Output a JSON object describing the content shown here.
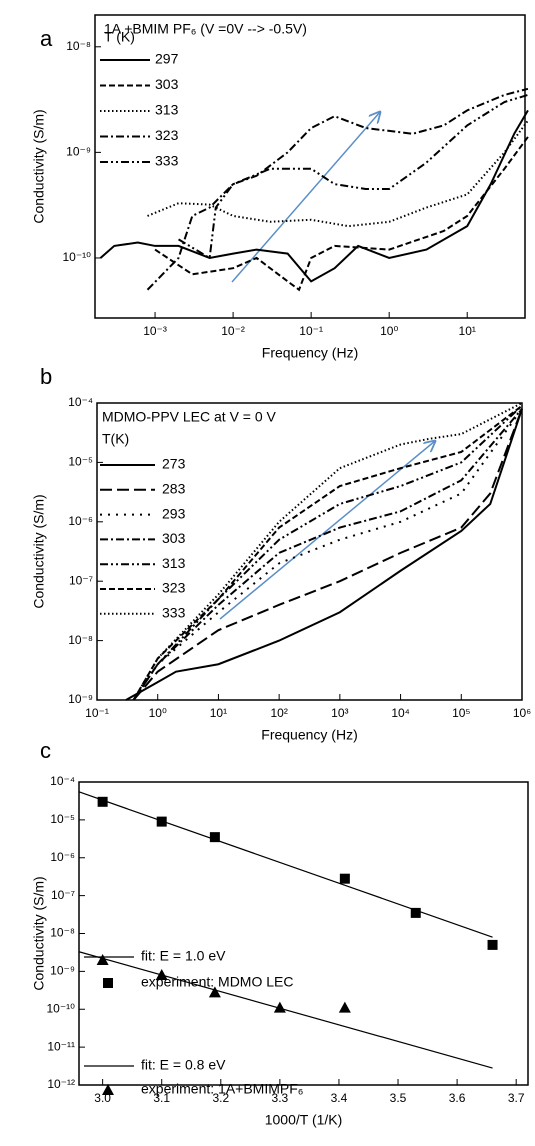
{
  "chart_data": [
    {
      "type": "line",
      "label": "a",
      "annotation": "1A +BMIM PF₆  (V =0V --> -0.5V)",
      "legend_title": "T (K)",
      "xlabel": "Frequency (Hz)",
      "ylabel": "Conductivity (S/m)",
      "xlog": true,
      "ylog": true,
      "xlim": [
        0.00017,
        55
      ],
      "ylim": [
        2.7e-11,
        2e-08
      ],
      "xticks": [
        {
          "value": 0.001,
          "label": "10⁻³"
        },
        {
          "value": 0.01,
          "label": "10⁻²"
        },
        {
          "value": 0.1,
          "label": "10⁻¹"
        },
        {
          "value": 1,
          "label": "10⁰"
        },
        {
          "value": 10,
          "label": "10¹"
        }
      ],
      "yticks": [
        {
          "value": 1e-10,
          "label": "10⁻¹⁰"
        },
        {
          "value": 1e-09,
          "label": "10⁻⁹"
        },
        {
          "value": 1e-08,
          "label": "10⁻⁸"
        }
      ],
      "series": [
        {
          "name": "297",
          "color": "#000",
          "style": "solid",
          "x": [
            0.0002,
            0.0003,
            0.0006,
            0.001,
            0.002,
            0.005,
            0.01,
            0.02,
            0.05,
            0.1,
            0.2,
            0.4,
            1,
            3,
            10,
            20,
            40,
            60
          ],
          "values": [
            1e-10,
            1.3e-10,
            1.4e-10,
            1.3e-10,
            1.3e-10,
            1e-10,
            1.1e-10,
            1.2e-10,
            1.1e-10,
            6e-11,
            8e-11,
            1.3e-10,
            1e-10,
            1.2e-10,
            2e-10,
            5e-10,
            1.5e-09,
            2.5e-09
          ]
        },
        {
          "name": "303",
          "color": "#000",
          "style": "dashed",
          "x": [
            0.001,
            0.003,
            0.01,
            0.02,
            0.05,
            0.07,
            0.1,
            0.2,
            1,
            5,
            10,
            30,
            60
          ],
          "values": [
            1.2e-10,
            7e-11,
            8e-11,
            1e-10,
            6e-11,
            5e-11,
            1e-10,
            1.3e-10,
            1.2e-10,
            1.8e-10,
            2.5e-10,
            7e-10,
            1.4e-09
          ]
        },
        {
          "name": "313",
          "color": "#000",
          "style": "dotted",
          "x": [
            0.0008,
            0.002,
            0.005,
            0.01,
            0.03,
            0.1,
            0.3,
            1,
            3,
            10,
            30,
            60
          ],
          "values": [
            2.5e-10,
            3.3e-10,
            3.2e-10,
            2.5e-10,
            2.2e-10,
            2.3e-10,
            2e-10,
            2.2e-10,
            3e-10,
            4e-10,
            1e-09,
            2e-09
          ]
        },
        {
          "name": "323",
          "color": "#000",
          "style": "dashdot",
          "x": [
            0.0008,
            0.002,
            0.003,
            0.005,
            0.01,
            0.02,
            0.05,
            0.1,
            0.2,
            0.5,
            2,
            5,
            10,
            30,
            60
          ],
          "values": [
            5e-11,
            1e-10,
            2.5e-10,
            3e-10,
            5e-10,
            6e-10,
            1e-09,
            1.7e-09,
            2.2e-09,
            1.7e-09,
            1.5e-09,
            1.8e-09,
            2.5e-09,
            3.5e-09,
            4e-09
          ]
        },
        {
          "name": "333",
          "color": "#000",
          "style": "dashdotdot",
          "x": [
            0.002,
            0.005,
            0.006,
            0.01,
            0.03,
            0.1,
            0.2,
            0.5,
            1,
            3,
            10,
            30,
            60
          ],
          "values": [
            1.5e-10,
            1e-10,
            3e-10,
            5e-10,
            7e-10,
            7e-10,
            5e-10,
            4.5e-10,
            4.5e-10,
            8e-10,
            1.8e-09,
            3e-09,
            3.5e-09
          ]
        }
      ]
    },
    {
      "type": "line",
      "label": "b",
      "annotation": "MDMO-PPV LEC at V = 0 V",
      "legend_title": "T(K)",
      "xlabel": "Frequency (Hz)",
      "ylabel": "Conductivity (S/m)",
      "xlog": true,
      "ylog": true,
      "xlim": [
        0.1,
        1000000
      ],
      "ylim": [
        1e-09,
        0.0001
      ],
      "xticks": [
        {
          "value": 0.1,
          "label": "10⁻¹"
        },
        {
          "value": 1,
          "label": "10⁰"
        },
        {
          "value": 10,
          "label": "10¹"
        },
        {
          "value": 100,
          "label": "10²"
        },
        {
          "value": 1000,
          "label": "10³"
        },
        {
          "value": 10000,
          "label": "10⁴"
        },
        {
          "value": 100000,
          "label": "10⁵"
        },
        {
          "value": 1000000,
          "label": "10⁶"
        }
      ],
      "yticks": [
        {
          "value": 1e-09,
          "label": "10⁻⁹"
        },
        {
          "value": 1e-08,
          "label": "10⁻⁸"
        },
        {
          "value": 1e-07,
          "label": "10⁻⁷"
        },
        {
          "value": 1e-06,
          "label": "10⁻⁶"
        },
        {
          "value": 1e-05,
          "label": "10⁻⁵"
        },
        {
          "value": 0.0001,
          "label": "10⁻⁴"
        }
      ],
      "series": [
        {
          "name": "273",
          "color": "#000",
          "style": "solid",
          "x": [
            0.3,
            1,
            2,
            10,
            100,
            1000,
            10000,
            100000,
            300000,
            1000000
          ],
          "values": [
            1e-09,
            2e-09,
            3e-09,
            4e-09,
            1e-08,
            3e-08,
            1.5e-07,
            7e-07,
            2e-06,
            8e-05
          ]
        },
        {
          "name": "283",
          "color": "#000",
          "style": "longdash",
          "x": [
            0.4,
            1,
            10,
            100,
            1000,
            10000,
            100000,
            300000,
            1000000
          ],
          "values": [
            1e-09,
            3e-09,
            1.5e-08,
            4e-08,
            1e-07,
            3e-07,
            8e-07,
            3e-06,
            8e-05
          ]
        },
        {
          "name": "293",
          "color": "#000",
          "style": "sparsedot",
          "x": [
            0.4,
            1,
            10,
            100,
            1000,
            10000,
            100000,
            1000000
          ],
          "values": [
            1e-09,
            4e-09,
            3e-08,
            2e-07,
            5e-07,
            1e-06,
            3e-06,
            8e-05
          ]
        },
        {
          "name": "303",
          "color": "#000",
          "style": "dashdot",
          "x": [
            0.4,
            1,
            10,
            100,
            1000,
            10000,
            100000,
            1000000
          ],
          "values": [
            1e-09,
            4e-09,
            4e-08,
            3e-07,
            8e-07,
            1.5e-06,
            5e-06,
            8e-05
          ]
        },
        {
          "name": "313",
          "color": "#000",
          "style": "dashdotdot",
          "x": [
            0.4,
            1,
            10,
            100,
            1000,
            10000,
            100000,
            1000000
          ],
          "values": [
            1e-09,
            4e-09,
            5e-08,
            5e-07,
            2e-06,
            4e-06,
            1e-05,
            9e-05
          ]
        },
        {
          "name": "323",
          "color": "#000",
          "style": "dashed",
          "x": [
            0.4,
            1,
            10,
            100,
            1000,
            10000,
            100000,
            1000000
          ],
          "values": [
            1e-09,
            5e-09,
            5e-08,
            8e-07,
            4e-06,
            8e-06,
            1.5e-05,
            9e-05
          ]
        },
        {
          "name": "333",
          "color": "#000",
          "style": "dotted",
          "x": [
            0.4,
            1,
            10,
            100,
            1000,
            10000,
            30000,
            100000,
            1000000
          ],
          "values": [
            1e-09,
            5e-09,
            6e-08,
            1e-06,
            8e-06,
            2e-05,
            2.5e-05,
            3e-05,
            0.0001
          ]
        }
      ]
    },
    {
      "type": "scatter",
      "label": "c",
      "xlabel": "1000/T (1/K)",
      "ylabel": "Conductivity (S/m)",
      "xlog": false,
      "ylog": true,
      "xlim": [
        2.96,
        3.72
      ],
      "ylim": [
        1e-12,
        0.0001
      ],
      "xticks": [
        {
          "value": 3,
          "label": "3.0"
        },
        3.1,
        3.2,
        3.3,
        3.4,
        3.5,
        3.6,
        3.7
      ],
      "yticks": [
        {
          "value": 1e-12,
          "label": "10⁻¹²"
        },
        {
          "value": 1e-11,
          "label": "10⁻¹¹"
        },
        {
          "value": 1e-10,
          "label": "10⁻¹⁰"
        },
        {
          "value": 1e-09,
          "label": "10⁻⁹"
        },
        {
          "value": 1e-08,
          "label": "10⁻⁸"
        },
        {
          "value": 1e-07,
          "label": "10⁻⁷"
        },
        {
          "value": 1e-06,
          "label": "10⁻⁶"
        },
        {
          "value": 1e-05,
          "label": "10⁻⁵"
        },
        {
          "value": 0.0001,
          "label": "10⁻⁴"
        }
      ],
      "series": [
        {
          "name": "fit: E = 1.0 eV",
          "color": "#000",
          "marker": "line",
          "x": [
            2.96,
            3.66
          ],
          "values": [
            5.5e-05,
            8e-09
          ]
        },
        {
          "name": "experiment: MDMO LEC",
          "color": "#000",
          "marker": "square",
          "x": [
            3.0,
            3.1,
            3.19,
            3.41,
            3.53,
            3.66
          ],
          "values": [
            3e-05,
            9e-06,
            3.5e-06,
            2.8e-07,
            3.5e-08,
            5e-09
          ]
        },
        {
          "name": "fit: E = 0.8 eV",
          "color": "#000",
          "marker": "line",
          "x": [
            2.96,
            3.66
          ],
          "values": [
            3.3e-09,
            2.8e-12
          ]
        },
        {
          "name": "experiment: 1A+BMIMPF₆",
          "color": "#000",
          "marker": "triangle",
          "x": [
            3.0,
            3.1,
            3.19,
            3.3,
            3.41
          ],
          "values": [
            2e-09,
            8e-10,
            2.8e-10,
            1.1e-10,
            1.1e-10
          ]
        }
      ]
    }
  ]
}
